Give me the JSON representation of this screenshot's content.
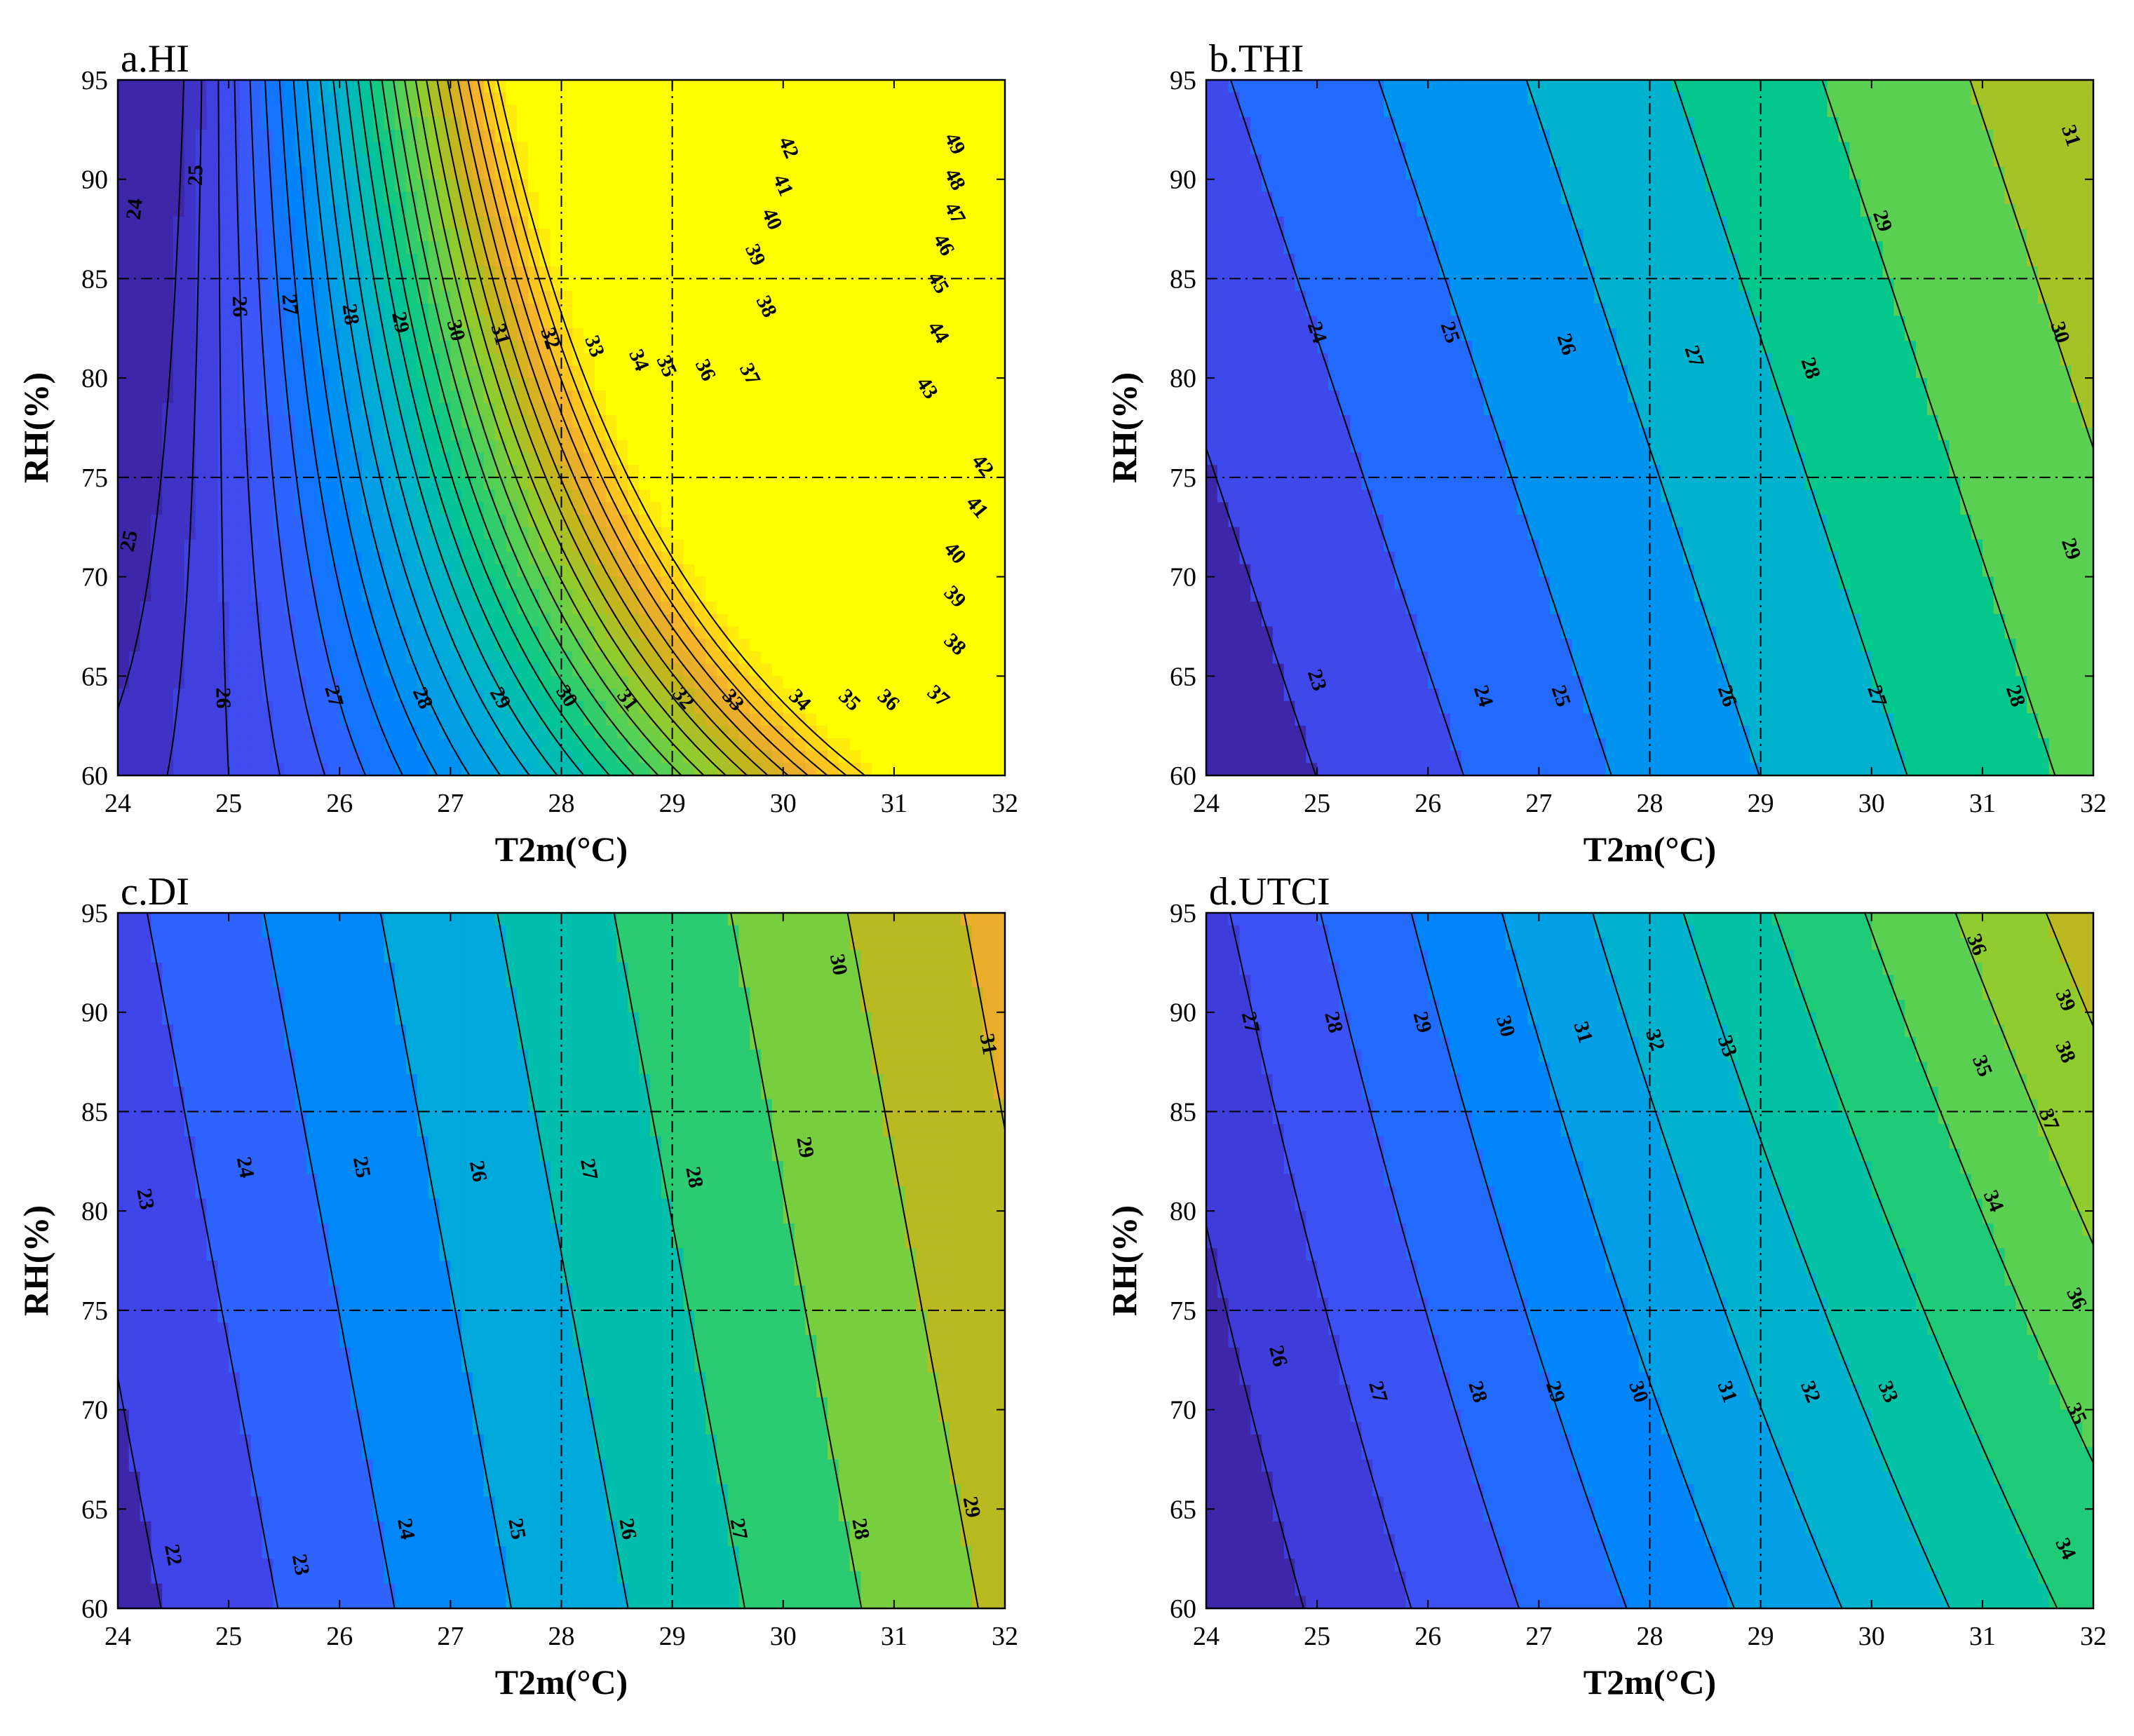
{
  "chart_data": [
    {
      "type": "contour",
      "title": "a.HI",
      "xlabel": "T2m(°C)",
      "ylabel": "RH(%)",
      "xlim": [
        24,
        32
      ],
      "ylim": [
        60,
        95
      ],
      "xticks": [
        24,
        25,
        26,
        27,
        28,
        29,
        30,
        31,
        32
      ],
      "yticks": [
        60,
        65,
        70,
        75,
        80,
        85,
        90,
        95
      ],
      "reference_lines": {
        "x": [
          28,
          29
        ],
        "y": [
          75,
          85
        ]
      },
      "contour_levels": [
        24,
        25,
        26,
        27,
        28,
        29,
        30,
        31,
        32,
        33,
        34,
        35,
        36,
        37,
        38,
        39,
        40,
        41,
        42,
        43,
        44,
        45,
        46,
        47,
        48,
        49
      ],
      "contour_labels": [
        {
          "text": "24",
          "x": 24.15,
          "y": 88.5
        },
        {
          "text": "25",
          "x": 24.7,
          "y": 90.2
        },
        {
          "text": "25",
          "x": 24.1,
          "y": 71.8
        },
        {
          "text": "26",
          "x": 25.1,
          "y": 83.6
        },
        {
          "text": "27",
          "x": 25.55,
          "y": 83.7
        },
        {
          "text": "28",
          "x": 26.1,
          "y": 83.2
        },
        {
          "text": "29",
          "x": 26.55,
          "y": 82.8
        },
        {
          "text": "30",
          "x": 27.05,
          "y": 82.4
        },
        {
          "text": "31",
          "x": 27.45,
          "y": 82.2
        },
        {
          "text": "32",
          "x": 27.9,
          "y": 82.0
        },
        {
          "text": "33",
          "x": 28.3,
          "y": 81.6
        },
        {
          "text": "34",
          "x": 28.7,
          "y": 80.9
        },
        {
          "text": "35",
          "x": 28.95,
          "y": 80.6
        },
        {
          "text": "36",
          "x": 29.3,
          "y": 80.4
        },
        {
          "text": "37",
          "x": 29.7,
          "y": 80.2
        },
        {
          "text": "38",
          "x": 29.85,
          "y": 83.6
        },
        {
          "text": "39",
          "x": 29.75,
          "y": 86.2
        },
        {
          "text": "40",
          "x": 29.9,
          "y": 88.0
        },
        {
          "text": "41",
          "x": 30.0,
          "y": 89.7
        },
        {
          "text": "42",
          "x": 30.05,
          "y": 91.6
        },
        {
          "text": "42",
          "x": 31.8,
          "y": 75.6
        },
        {
          "text": "41",
          "x": 31.75,
          "y": 73.5
        },
        {
          "text": "40",
          "x": 31.55,
          "y": 71.2
        },
        {
          "text": "39",
          "x": 31.55,
          "y": 69.0
        },
        {
          "text": "38",
          "x": 31.55,
          "y": 66.6
        },
        {
          "text": "37",
          "x": 31.4,
          "y": 64.0
        },
        {
          "text": "36",
          "x": 30.95,
          "y": 63.8
        },
        {
          "text": "35",
          "x": 30.6,
          "y": 63.8
        },
        {
          "text": "34",
          "x": 30.15,
          "y": 63.8
        },
        {
          "text": "33",
          "x": 29.55,
          "y": 63.8
        },
        {
          "text": "32",
          "x": 29.1,
          "y": 63.9
        },
        {
          "text": "31",
          "x": 28.6,
          "y": 63.8
        },
        {
          "text": "30",
          "x": 28.05,
          "y": 64.0
        },
        {
          "text": "29",
          "x": 27.45,
          "y": 63.9
        },
        {
          "text": "28",
          "x": 26.75,
          "y": 63.9
        },
        {
          "text": "27",
          "x": 25.95,
          "y": 64.0
        },
        {
          "text": "26",
          "x": 24.95,
          "y": 63.9
        },
        {
          "text": "43",
          "x": 31.3,
          "y": 79.5
        },
        {
          "text": "44",
          "x": 31.4,
          "y": 82.3
        },
        {
          "text": "45",
          "x": 31.4,
          "y": 84.8
        },
        {
          "text": "46",
          "x": 31.45,
          "y": 86.7
        },
        {
          "text": "47",
          "x": 31.55,
          "y": 88.3
        },
        {
          "text": "48",
          "x": 31.55,
          "y": 90.0
        },
        {
          "text": "49",
          "x": 31.55,
          "y": 91.8
        }
      ]
    },
    {
      "type": "contour",
      "title": "b.THI",
      "xlabel": "T2m(°C)",
      "ylabel": "RH(%)",
      "xlim": [
        24,
        32
      ],
      "ylim": [
        60,
        95
      ],
      "xticks": [
        24,
        25,
        26,
        27,
        28,
        29,
        30,
        31,
        32
      ],
      "yticks": [
        60,
        65,
        70,
        75,
        80,
        85,
        90,
        95
      ],
      "reference_lines": {
        "x": [
          28,
          29
        ],
        "y": [
          75,
          85
        ]
      },
      "contour_levels": [
        23,
        24,
        25,
        26,
        27,
        28,
        29,
        30,
        31
      ],
      "contour_labels": [
        {
          "text": "23",
          "x": 25.0,
          "y": 64.8
        },
        {
          "text": "24",
          "x": 26.5,
          "y": 64.0
        },
        {
          "text": "25",
          "x": 27.2,
          "y": 64.0
        },
        {
          "text": "26",
          "x": 28.7,
          "y": 64.0
        },
        {
          "text": "27",
          "x": 30.05,
          "y": 64.0
        },
        {
          "text": "28",
          "x": 31.3,
          "y": 64.0
        },
        {
          "text": "24",
          "x": 25.0,
          "y": 82.3
        },
        {
          "text": "25",
          "x": 26.2,
          "y": 82.3
        },
        {
          "text": "26",
          "x": 27.25,
          "y": 81.7
        },
        {
          "text": "27",
          "x": 28.4,
          "y": 81.1
        },
        {
          "text": "28",
          "x": 29.45,
          "y": 80.5
        },
        {
          "text": "29",
          "x": 30.1,
          "y": 87.9
        },
        {
          "text": "30",
          "x": 31.7,
          "y": 82.3
        },
        {
          "text": "29",
          "x": 31.8,
          "y": 71.4
        },
        {
          "text": "31",
          "x": 31.8,
          "y": 92.2
        }
      ]
    },
    {
      "type": "contour",
      "title": "c.DI",
      "xlabel": "T2m(°C)",
      "ylabel": "RH(%)",
      "xlim": [
        24,
        32
      ],
      "ylim": [
        60,
        95
      ],
      "xticks": [
        24,
        25,
        26,
        27,
        28,
        29,
        30,
        31,
        32
      ],
      "yticks": [
        60,
        65,
        70,
        75,
        80,
        85,
        90,
        95
      ],
      "reference_lines": {
        "x": [
          28,
          29
        ],
        "y": [
          75,
          85
        ]
      },
      "contour_levels": [
        22,
        23,
        24,
        25,
        26,
        27,
        28,
        29,
        30,
        31
      ],
      "contour_labels": [
        {
          "text": "22",
          "x": 24.5,
          "y": 62.7
        },
        {
          "text": "23",
          "x": 25.65,
          "y": 62.2
        },
        {
          "text": "24",
          "x": 26.6,
          "y": 64.0
        },
        {
          "text": "25",
          "x": 27.6,
          "y": 64.0
        },
        {
          "text": "26",
          "x": 28.6,
          "y": 64.0
        },
        {
          "text": "27",
          "x": 29.6,
          "y": 64.0
        },
        {
          "text": "28",
          "x": 30.7,
          "y": 64.0
        },
        {
          "text": "29",
          "x": 31.7,
          "y": 65.1
        },
        {
          "text": "23",
          "x": 24.25,
          "y": 80.6
        },
        {
          "text": "24",
          "x": 25.15,
          "y": 82.2
        },
        {
          "text": "25",
          "x": 26.2,
          "y": 82.2
        },
        {
          "text": "26",
          "x": 27.25,
          "y": 82.0
        },
        {
          "text": "27",
          "x": 28.25,
          "y": 82.1
        },
        {
          "text": "28",
          "x": 29.2,
          "y": 81.7
        },
        {
          "text": "29",
          "x": 30.2,
          "y": 83.2
        },
        {
          "text": "30",
          "x": 30.5,
          "y": 92.4
        },
        {
          "text": "31",
          "x": 31.85,
          "y": 88.4
        }
      ]
    },
    {
      "type": "contour",
      "title": "d.UTCI",
      "xlabel": "T2m(°C)",
      "ylabel": "RH(%)",
      "xlim": [
        24,
        32
      ],
      "ylim": [
        60,
        95
      ],
      "xticks": [
        24,
        25,
        26,
        27,
        28,
        29,
        30,
        31,
        32
      ],
      "yticks": [
        60,
        65,
        70,
        75,
        80,
        85,
        90,
        95
      ],
      "reference_lines": {
        "x": [
          28,
          29
        ],
        "y": [
          75,
          85
        ]
      },
      "contour_levels": [
        26,
        27,
        28,
        29,
        30,
        31,
        32,
        33,
        34,
        35,
        36,
        37,
        38,
        39
      ],
      "contour_labels": [
        {
          "text": "27",
          "x": 24.4,
          "y": 89.5
        },
        {
          "text": "28",
          "x": 25.15,
          "y": 89.5
        },
        {
          "text": "29",
          "x": 25.95,
          "y": 89.5
        },
        {
          "text": "30",
          "x": 26.7,
          "y": 89.3
        },
        {
          "text": "31",
          "x": 27.4,
          "y": 89.0
        },
        {
          "text": "32",
          "x": 28.05,
          "y": 88.6
        },
        {
          "text": "33",
          "x": 28.7,
          "y": 88.3
        },
        {
          "text": "36",
          "x": 30.95,
          "y": 93.4
        },
        {
          "text": "35",
          "x": 31.0,
          "y": 87.3
        },
        {
          "text": "34",
          "x": 31.1,
          "y": 80.5
        },
        {
          "text": "39",
          "x": 31.75,
          "y": 90.6
        },
        {
          "text": "38",
          "x": 31.75,
          "y": 88.0
        },
        {
          "text": "37",
          "x": 31.6,
          "y": 84.6
        },
        {
          "text": "36",
          "x": 31.85,
          "y": 75.6
        },
        {
          "text": "35",
          "x": 31.85,
          "y": 69.8
        },
        {
          "text": "34",
          "x": 31.75,
          "y": 63.0
        },
        {
          "text": "26",
          "x": 24.65,
          "y": 72.7
        },
        {
          "text": "27",
          "x": 25.55,
          "y": 70.9
        },
        {
          "text": "28",
          "x": 26.45,
          "y": 70.9
        },
        {
          "text": "29",
          "x": 27.15,
          "y": 70.9
        },
        {
          "text": "30",
          "x": 27.9,
          "y": 70.9
        },
        {
          "text": "31",
          "x": 28.7,
          "y": 70.9
        },
        {
          "text": "32",
          "x": 29.45,
          "y": 70.9
        },
        {
          "text": "33",
          "x": 30.15,
          "y": 70.9
        }
      ]
    }
  ],
  "colors": {
    "frame": "#000000",
    "contour_line": "#000000",
    "reference_line": "#000000",
    "colormap": [
      "#3d26a8",
      "#4043e6",
      "#3a5cff",
      "#0080ff",
      "#029fe6",
      "#00b7c7",
      "#04c78c",
      "#4bd15a",
      "#90cc2e",
      "#c8b31c",
      "#f3ac2f",
      "#ffd21a",
      "#ffff00"
    ]
  }
}
